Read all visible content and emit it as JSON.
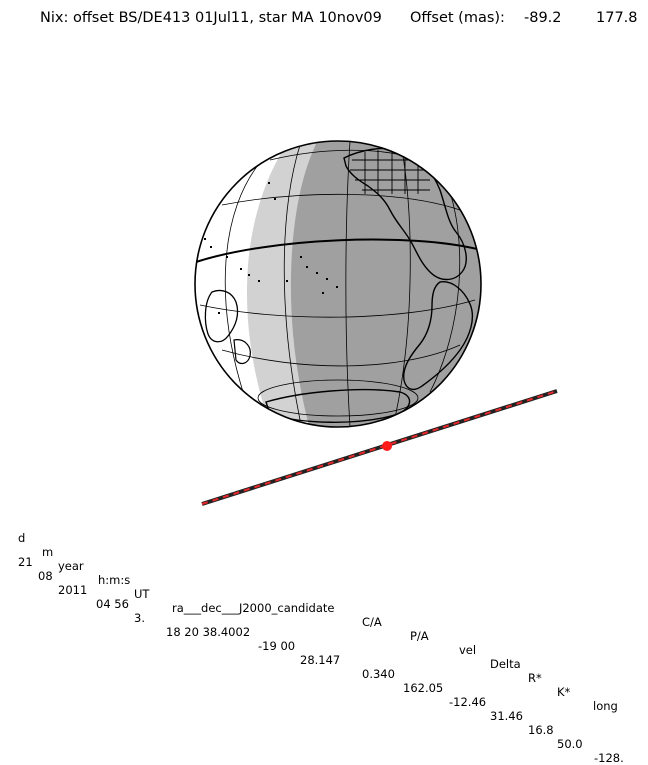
{
  "header": {
    "title": "Nix: offset BS/DE413 01Jul11, star MA 10nov09",
    "offset_label": "Offset (mas):",
    "offset_x": "-89.2",
    "offset_y": "177.8"
  },
  "colors": {
    "night": "#a0a0a0",
    "twilight": "#d2d2d2",
    "day": "#ffffff",
    "track_dash": "#e8282a",
    "track_line": "#222222",
    "event_marker": "#ff1a1a"
  },
  "table": {
    "headers": [
      "d",
      "m",
      "year",
      "h:m:s",
      "UT",
      "ra___dec___J2000_candidate",
      "C/A",
      "P/A",
      "vel",
      "Delta",
      "R*",
      "K*",
      "long"
    ],
    "values": [
      "21",
      "08",
      "2011",
      "04 56",
      "3.",
      "18 20 38.4002",
      "-19 00",
      "28.147",
      "0.340",
      "162.05",
      "-12.46",
      "31.46",
      "16.8",
      "50.0",
      "-128."
    ]
  }
}
